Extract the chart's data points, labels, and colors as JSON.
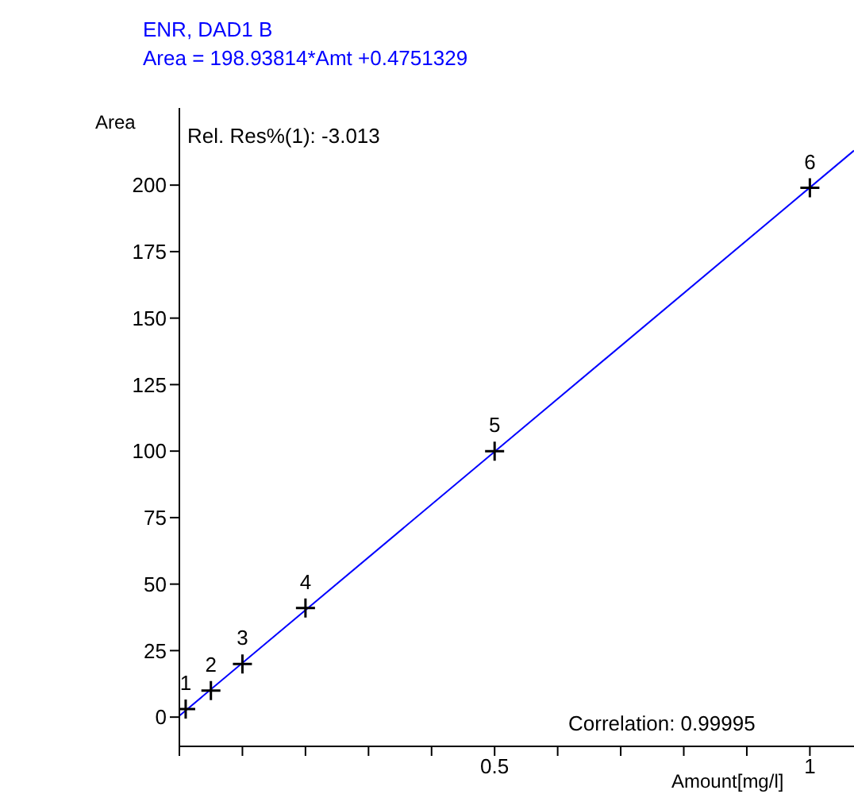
{
  "chart_data": {
    "type": "scatter",
    "title": "ENR, DAD1 B",
    "subtitle": "Area = 198.93814*Amt +0.4751329",
    "xlabel": "Amount[mg/l]",
    "ylabel": "Area",
    "annotations": [
      "Rel. Res%(1): -3.013",
      "Correlation: 0.99995",
      {
        "text": "1",
        "x": 0.01,
        "y": 3
      },
      {
        "text": "2",
        "x": 0.05,
        "y": 10
      },
      {
        "text": "3",
        "x": 0.1,
        "y": 20
      },
      {
        "text": "4",
        "x": 0.2,
        "y": 41
      },
      {
        "text": "5",
        "x": 0.5,
        "y": 100
      },
      {
        "text": "6",
        "x": 1.0,
        "y": 199
      }
    ],
    "series": [
      {
        "color": "#000000",
        "marker": "cross",
        "x": [
          0.01,
          0.05,
          0.1,
          0.2,
          0.5,
          1.0
        ],
        "values": [
          3,
          10,
          20,
          41,
          100,
          199
        ]
      },
      {
        "type": "line",
        "color": "#0000ff",
        "marker": "none",
        "line_style": "solid",
        "x": [
          0,
          1.07
        ],
        "values": [
          0.5,
          213
        ]
      }
    ],
    "xlim": [
      0,
      1.07
    ],
    "xticks": [
      {
        "value": 0,
        "label": null
      },
      {
        "value": 0.1,
        "label": null
      },
      {
        "value": 0.2,
        "label": null
      },
      {
        "value": 0.3,
        "label": null
      },
      {
        "value": 0.4,
        "label": null
      },
      {
        "value": 0.5,
        "label": "0.5"
      },
      {
        "value": 0.6,
        "label": null
      },
      {
        "value": 0.7,
        "label": null
      },
      {
        "value": 0.8,
        "label": null
      },
      {
        "value": 0.9,
        "label": null
      },
      {
        "value": 1,
        "label": "1"
      }
    ],
    "ylim": [
      -11,
      229
    ],
    "yticks": [
      0,
      25,
      50,
      75,
      100,
      125,
      150,
      175,
      200
    ],
    "grid": false,
    "legend": false
  }
}
